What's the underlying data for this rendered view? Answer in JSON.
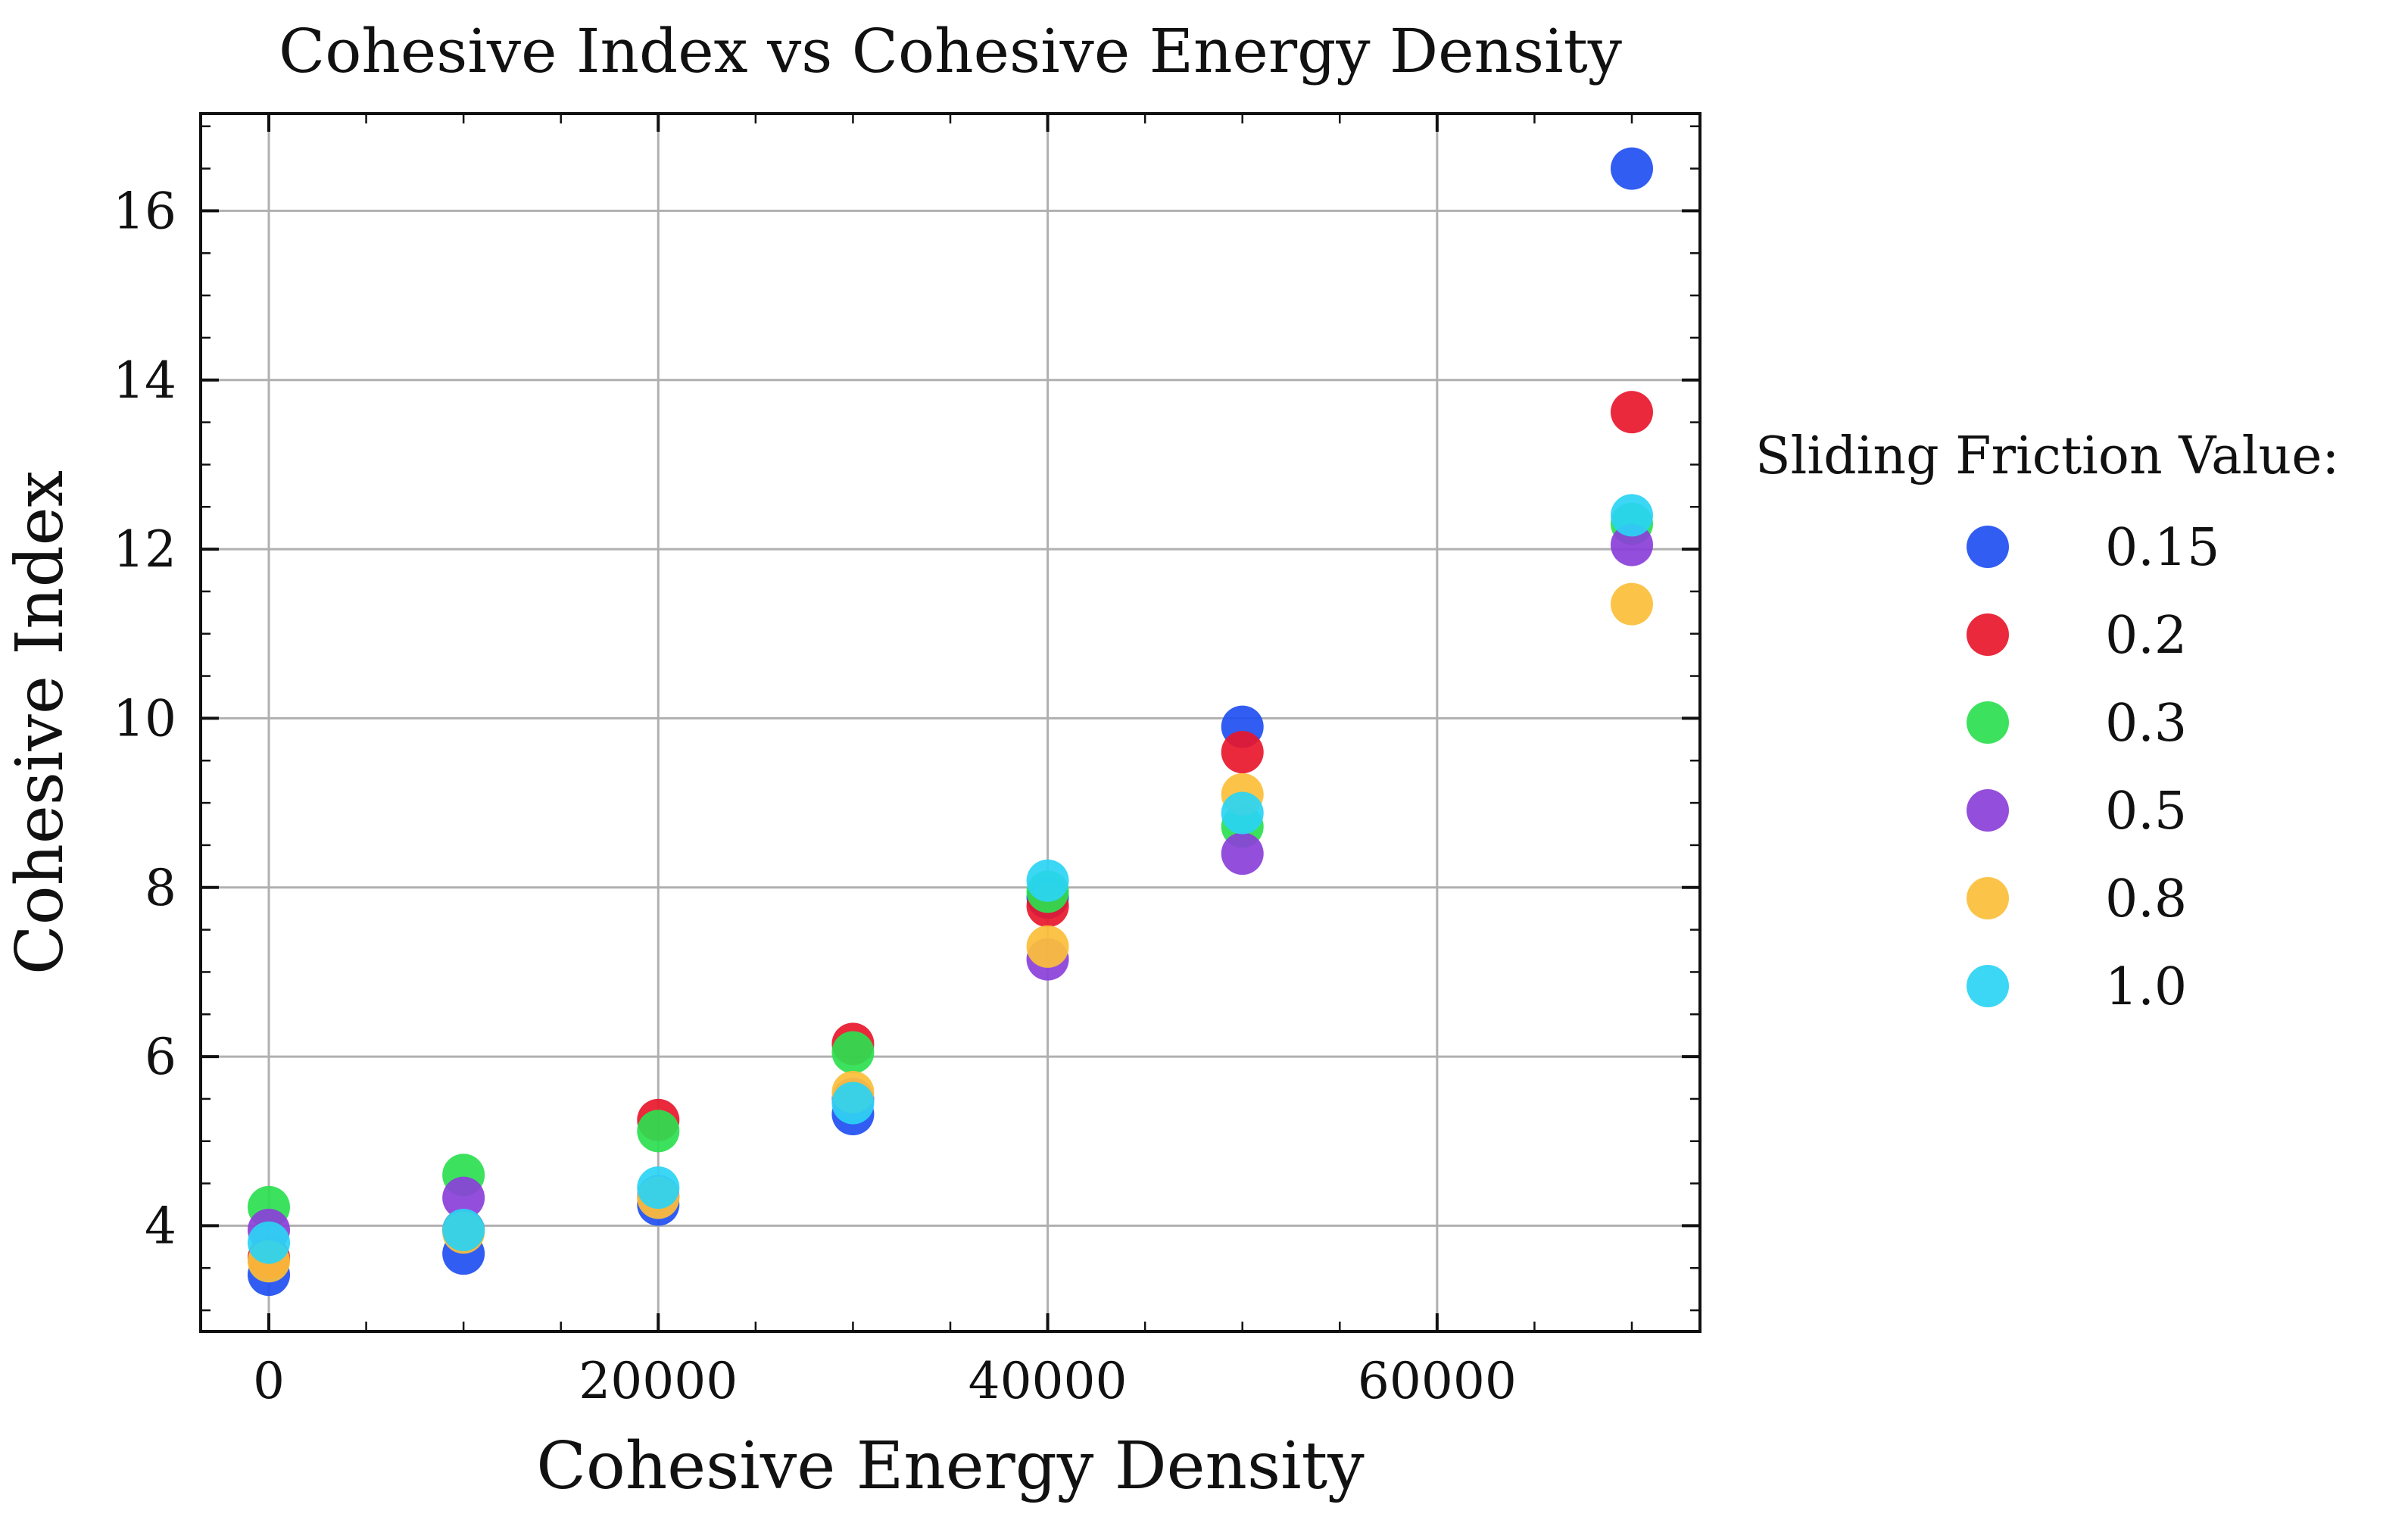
{
  "chart_data": {
    "type": "scatter",
    "title": "Cohesive Index vs Cohesive Energy Density",
    "xlabel": "Cohesive Energy Density",
    "ylabel": "Cohesive Index",
    "xlim": [
      -3500,
      73500
    ],
    "ylim": [
      2.75,
      17.15
    ],
    "xticks": [
      0,
      20000,
      40000,
      60000
    ],
    "xtick_labels": [
      "0",
      "20000",
      "40000",
      "60000"
    ],
    "yticks": [
      4,
      6,
      8,
      10,
      12,
      14,
      16
    ],
    "ytick_labels": [
      "4",
      "6",
      "8",
      "10",
      "12",
      "14",
      "16"
    ],
    "x_minor_step": 5000,
    "y_minor_step": 0.5,
    "grid": true,
    "legend": {
      "title": "Sliding Friction Value:",
      "placement": "outside-right"
    },
    "series": [
      {
        "name": "0.15",
        "color": "#1f4ff2",
        "x": [
          0,
          10000,
          20000,
          30000,
          40000,
          50000,
          70000
        ],
        "y": [
          3.42,
          3.67,
          4.25,
          5.32,
          7.88,
          9.9,
          16.5
        ]
      },
      {
        "name": "0.2",
        "color": "#e8172c",
        "x": [
          0,
          10000,
          20000,
          30000,
          40000,
          50000,
          70000
        ],
        "y": [
          3.62,
          3.95,
          5.25,
          6.15,
          7.78,
          9.6,
          13.62
        ]
      },
      {
        "name": "0.3",
        "color": "#2be04f",
        "x": [
          0,
          10000,
          20000,
          30000,
          40000,
          50000,
          70000
        ],
        "y": [
          4.22,
          4.6,
          5.12,
          6.05,
          7.95,
          8.72,
          12.3
        ]
      },
      {
        "name": "0.5",
        "color": "#8b3fd9",
        "x": [
          0,
          10000,
          20000,
          30000,
          40000,
          50000,
          70000
        ],
        "y": [
          3.95,
          4.33,
          4.35,
          5.5,
          7.15,
          8.4,
          12.05
        ]
      },
      {
        "name": "0.8",
        "color": "#fbbf3a",
        "x": [
          0,
          10000,
          20000,
          30000,
          40000,
          50000,
          70000
        ],
        "y": [
          3.58,
          3.92,
          4.33,
          5.58,
          7.3,
          9.1,
          11.35
        ]
      },
      {
        "name": "1.0",
        "color": "#2ad4f4",
        "x": [
          0,
          10000,
          20000,
          30000,
          40000,
          50000,
          70000
        ],
        "y": [
          3.8,
          3.95,
          4.45,
          5.45,
          8.08,
          8.88,
          12.4
        ]
      }
    ]
  }
}
